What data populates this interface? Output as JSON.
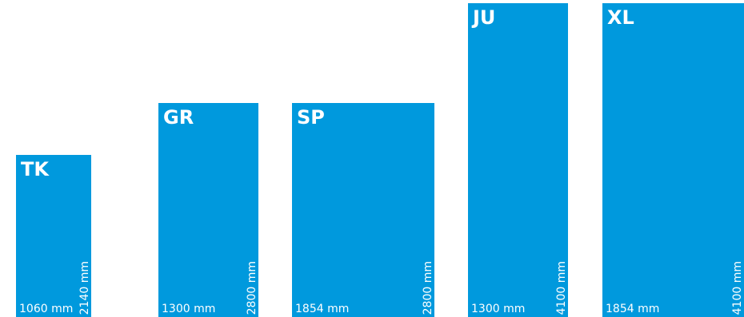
{
  "panels": [
    {
      "code": "TK",
      "width_label": "1060 mm",
      "height_label": "2140 mm",
      "width_mm": 1060,
      "height_mm": 2140
    },
    {
      "code": "GR",
      "width_label": "1300 mm",
      "height_label": "2800 mm",
      "width_mm": 1300,
      "height_mm": 2800
    },
    {
      "code": "SP",
      "width_label": "1854 mm",
      "height_label": "2800 mm",
      "width_mm": 1854,
      "height_mm": 2800
    },
    {
      "code": "JU",
      "width_label": "1300 mm",
      "height_label": "4100 mm",
      "width_mm": 1300,
      "height_mm": 4100
    },
    {
      "code": "XL",
      "width_label": "1854 mm",
      "height_label": "4100 mm",
      "width_mm": 1854,
      "height_mm": 4100
    }
  ],
  "colors": {
    "panel": "#0099dd",
    "text": "#ffffff",
    "background": "#ffffff"
  }
}
